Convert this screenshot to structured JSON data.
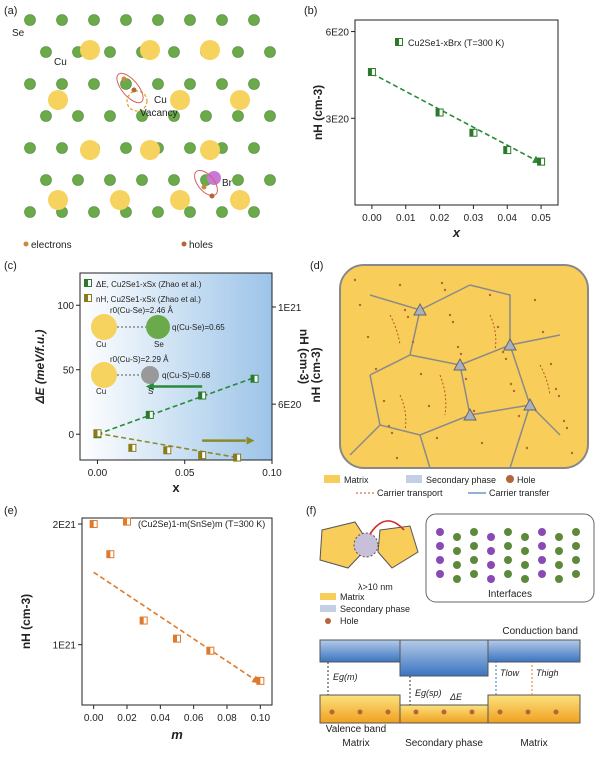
{
  "panels": {
    "a": {
      "label": "(a)",
      "se_label": "Se",
      "cu_label": "Cu",
      "vacancy_label_1": "Cu",
      "vacancy_label_2": "Vacancy",
      "br_label": "Br",
      "legend_electrons": "electrons",
      "legend_holes": "holes",
      "colors": {
        "se": "#6aaa4a",
        "cu": "#f6d25e",
        "electron": "#c98b3a",
        "hole": "#b5653a",
        "br": "#c878d8",
        "ring": "#d86060"
      }
    },
    "b": {
      "label": "(b)",
      "legend": "Cu2Se1-xBrx (T=300 K)",
      "legend_parts": [
        "Cu",
        "2",
        "Se",
        "1-x",
        "Br",
        "x",
        " (",
        "T",
        "=300 K)"
      ],
      "ylabel": "nH (cm-3)",
      "xlabel": "x"
    },
    "c": {
      "label": "(c)",
      "ylabel_left": "ΔE (meV/f.u.)",
      "ylabel_right": "nH (cm-3)",
      "xlabel": "x",
      "legend_1": "ΔE, Cu2Se1-xSx (Zhao et al.)",
      "legend_2": "nH, Cu2Se1-xSx (Zhao et al.)",
      "ann_r1": "r0(Cu-Se)=2.46 Å",
      "ann_q1": "q(Cu-Se)=0.65",
      "ann_r2": "r0(Cu-S)=2.29 Å",
      "ann_q2": "q(Cu-S)=0.68",
      "atom_cu": "Cu",
      "atom_se": "Se",
      "atom_s": "S"
    },
    "d": {
      "label": "(d)",
      "ylabel": "nH (cm-3)",
      "legend_matrix": "Matrix",
      "legend_secondary": "Secondary phase",
      "legend_hole": "Hole",
      "legend_transport": "Carrier transport",
      "legend_transfer": "Carrier transfer"
    },
    "e": {
      "label": "(e)",
      "legend": "(Cu2Se)1-m(SnSe)m (T=300 K)",
      "ylabel": "nH (cm-3)",
      "xlabel": "m"
    },
    "f": {
      "label": "(f)",
      "lambda_label": "λ>10 nm",
      "interfaces": "Interfaces",
      "legend_matrix": "Matrix",
      "legend_secondary": "Secondary phase",
      "legend_hole": "Hole",
      "conduction_band": "Conduction band",
      "valence_band": "Valence band",
      "eg_m": "Eg(m)",
      "eg_sp": "Eg(sp)",
      "delta_e": "ΔE",
      "t_low": "Tlow",
      "t_high": "Thigh",
      "bottom_matrix_1": "Matrix",
      "bottom_secondary": "Secondary phase",
      "bottom_matrix_2": "Matrix"
    }
  },
  "chart_data": [
    {
      "panel": "b",
      "type": "scatter",
      "title": "",
      "xlabel": "x",
      "ylabel": "nH (cm-3)",
      "xlim": [
        -0.005,
        0.055
      ],
      "xticks": [
        "0.00",
        "0.01",
        "0.02",
        "0.03",
        "0.04",
        "0.05"
      ],
      "ylim": [
        0,
        6.4
      ],
      "yticks": [
        {
          "v": 3,
          "label": "3E20"
        },
        {
          "v": 6,
          "label": "6E20"
        }
      ],
      "y_unit": "E20 cm-3",
      "series": [
        {
          "name": "Cu2Se1-xBrx (T=300 K)",
          "x": [
            0.0,
            0.02,
            0.03,
            0.04,
            0.05
          ],
          "y": [
            4.6,
            3.2,
            2.5,
            1.9,
            1.5
          ]
        }
      ],
      "trend": {
        "x": [
          0.0,
          0.05
        ],
        "y": [
          4.55,
          1.45
        ]
      }
    },
    {
      "panel": "c",
      "type": "scatter",
      "title": "",
      "xlabel": "x",
      "ylabel": "ΔE (meV/f.u.)",
      "y2label": "nH (cm-3)",
      "xlim": [
        -0.01,
        0.1
      ],
      "xticks": [
        "0.00",
        "0.05",
        "0.10"
      ],
      "ylim": [
        -20,
        125
      ],
      "yticks": [
        0,
        50,
        100
      ],
      "y2ticks": [
        {
          "v": 6,
          "label": "6E20"
        },
        {
          "v": 10,
          "label": "1E21"
        }
      ],
      "y2lim": [
        3.7,
        11.4
      ],
      "series": [
        {
          "name": "ΔE, Cu2Se1-xSx (Zhao et al.)",
          "axis": "left",
          "x": [
            0.0,
            0.03,
            0.06,
            0.09
          ],
          "y": [
            0,
            15,
            30,
            43
          ]
        },
        {
          "name": "nH, Cu2Se1-xSx (Zhao et al.)",
          "axis": "right",
          "x": [
            0.0,
            0.02,
            0.04,
            0.06,
            0.08
          ],
          "y": [
            4.8,
            4.2,
            4.1,
            3.9,
            3.8
          ]
        }
      ]
    },
    {
      "panel": "e",
      "type": "scatter",
      "title": "",
      "xlabel": "m",
      "ylabel": "nH (cm-3)",
      "xlim": [
        -0.007,
        0.107
      ],
      "xticks": [
        "0.00",
        "0.02",
        "0.04",
        "0.06",
        "0.08",
        "0.10"
      ],
      "ylim": [
        0.5,
        2.05
      ],
      "yticks": [
        {
          "v": 1,
          "label": "1E21"
        },
        {
          "v": 2,
          "label": "2E21"
        }
      ],
      "y_unit": "E21 cm-3",
      "series": [
        {
          "name": "(Cu2Se)1-m(SnSe)m (T=300 K)",
          "x": [
            0.0,
            0.01,
            0.02,
            0.03,
            0.05,
            0.07,
            0.1
          ],
          "y": [
            2.0,
            1.75,
            2.02,
            1.2,
            1.05,
            0.95,
            0.7
          ]
        }
      ],
      "trend": {
        "x": [
          0.0,
          0.1
        ],
        "y": [
          1.6,
          0.68
        ]
      }
    }
  ]
}
